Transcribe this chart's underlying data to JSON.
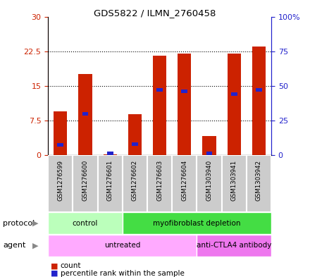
{
  "title": "GDS5822 / ILMN_2760458",
  "samples": [
    "GSM1276599",
    "GSM1276600",
    "GSM1276601",
    "GSM1276602",
    "GSM1276603",
    "GSM1276604",
    "GSM1303940",
    "GSM1303941",
    "GSM1303942"
  ],
  "counts": [
    9.5,
    17.5,
    0.2,
    8.8,
    21.5,
    22.0,
    4.2,
    22.0,
    23.5
  ],
  "percentile_ranks": [
    7.5,
    30.0,
    1.5,
    8.0,
    47.0,
    46.0,
    1.5,
    44.0,
    47.0
  ],
  "ylim_left": [
    0,
    30
  ],
  "ylim_right": [
    0,
    100
  ],
  "yticks_left": [
    0,
    7.5,
    15,
    22.5,
    30
  ],
  "yticks_right": [
    0,
    25,
    50,
    75,
    100
  ],
  "ytick_labels_left": [
    "0",
    "7.5",
    "15",
    "22.5",
    "30"
  ],
  "ytick_labels_right": [
    "0",
    "25",
    "50",
    "75",
    "100%"
  ],
  "bar_color": "#cc2200",
  "percentile_color": "#2222cc",
  "protocol_groups": [
    {
      "label": "control",
      "start": 0,
      "end": 3,
      "color": "#bbffbb"
    },
    {
      "label": "myofibroblast depletion",
      "start": 3,
      "end": 9,
      "color": "#44dd44"
    }
  ],
  "agent_groups": [
    {
      "label": "untreated",
      "start": 0,
      "end": 6,
      "color": "#ffaaff"
    },
    {
      "label": "anti-CTLA4 antibody",
      "start": 6,
      "end": 9,
      "color": "#ee77ee"
    }
  ],
  "legend_count_label": "count",
  "legend_percentile_label": "percentile rank within the sample",
  "protocol_label": "protocol",
  "agent_label": "agent",
  "bar_width": 0.55,
  "background_color": "#ffffff",
  "plot_bg_color": "#ffffff",
  "left_axis_color": "#cc2200",
  "right_axis_color": "#2222cc",
  "sample_box_color": "#cccccc",
  "arrow_color": "#888888"
}
